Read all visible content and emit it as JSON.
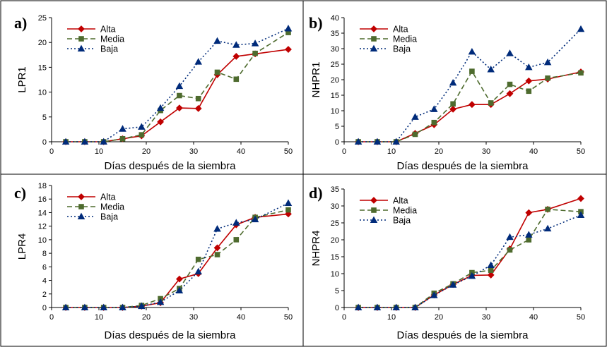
{
  "series_styles": {
    "Alta": {
      "color": "#c00000",
      "dash": "",
      "marker": "diamond"
    },
    "Media": {
      "color": "#4e6b2e",
      "dash": "7,4",
      "marker": "square"
    },
    "Baja": {
      "color": "#002b7a",
      "dash": "2,3",
      "marker": "triangle"
    }
  },
  "chart_data": [
    {
      "panel_label": "a)",
      "type": "line",
      "xlabel": "Días después de la siembra",
      "ylabel": "LPR1",
      "xlim": [
        0,
        50
      ],
      "xticks": [
        0,
        10,
        20,
        30,
        40,
        50
      ],
      "ylim": [
        0,
        25
      ],
      "yticks": [
        0,
        5,
        10,
        15,
        20,
        25
      ],
      "legend": "top-left",
      "x": [
        3,
        7,
        11,
        15,
        19,
        23,
        27,
        31,
        35,
        39,
        43,
        50
      ],
      "series": [
        {
          "name": "Alta",
          "values": [
            0,
            0,
            0,
            0.6,
            1.2,
            4.0,
            6.8,
            6.7,
            13.5,
            17.2,
            17.7,
            18.6
          ]
        },
        {
          "name": "Media",
          "values": [
            0,
            0,
            0,
            0.6,
            1.4,
            6.3,
            9.3,
            8.7,
            14.0,
            12.6,
            17.8,
            22.0
          ]
        },
        {
          "name": "Baja",
          "values": [
            0,
            0,
            0,
            2.6,
            3.0,
            6.8,
            11.2,
            16.1,
            20.3,
            19.5,
            19.8,
            22.8
          ]
        }
      ]
    },
    {
      "panel_label": "b)",
      "type": "line",
      "xlabel": "Días después de la siembra",
      "ylabel": "NHPR1",
      "xlim": [
        0,
        50
      ],
      "xticks": [
        0,
        10,
        20,
        30,
        40,
        50
      ],
      "ylim": [
        0,
        40
      ],
      "yticks": [
        0,
        5,
        10,
        15,
        20,
        25,
        30,
        35,
        40
      ],
      "legend": "top-left",
      "x": [
        3,
        7,
        11,
        15,
        19,
        23,
        27,
        31,
        35,
        39,
        43,
        50
      ],
      "series": [
        {
          "name": "Alta",
          "values": [
            0,
            0,
            0,
            2.7,
            5.5,
            10.5,
            12.0,
            12.0,
            15.5,
            19.6,
            20.2,
            22.5
          ]
        },
        {
          "name": "Media",
          "values": [
            0,
            0,
            0,
            2.4,
            6.2,
            12.2,
            22.7,
            12.5,
            18.5,
            16.3,
            20.5,
            22.2
          ]
        },
        {
          "name": "Baja",
          "values": [
            0,
            0,
            0,
            8.0,
            10.5,
            19.0,
            29.0,
            23.3,
            28.5,
            24.0,
            25.6,
            36.3
          ]
        }
      ]
    },
    {
      "panel_label": "c)",
      "type": "line",
      "xlabel": "Días después de la siembra",
      "ylabel": "LPR4",
      "xlim": [
        0,
        50
      ],
      "xticks": [
        0,
        10,
        20,
        30,
        40,
        50
      ],
      "ylim": [
        0,
        18
      ],
      "yticks": [
        0,
        2,
        4,
        6,
        8,
        10,
        12,
        14,
        16,
        18
      ],
      "legend": "top-left",
      "x": [
        3,
        7,
        11,
        15,
        19,
        23,
        27,
        31,
        35,
        39,
        43,
        50
      ],
      "series": [
        {
          "name": "Alta",
          "values": [
            0,
            0,
            0,
            0,
            0.2,
            0.7,
            4.2,
            5.0,
            8.8,
            12.2,
            13.3,
            13.8
          ]
        },
        {
          "name": "Media",
          "values": [
            0,
            0,
            0,
            0,
            0.3,
            1.3,
            2.8,
            7.1,
            7.8,
            10.0,
            13.3,
            14.4
          ]
        },
        {
          "name": "Baja",
          "values": [
            0,
            0,
            0,
            0,
            0.2,
            0.8,
            2.5,
            5.3,
            11.6,
            12.5,
            13.0,
            15.4
          ]
        }
      ]
    },
    {
      "panel_label": "d)",
      "type": "line",
      "xlabel": "Días después de la siembra",
      "ylabel": "NHPR4",
      "xlim": [
        0,
        50
      ],
      "xticks": [
        0,
        10,
        20,
        30,
        40,
        50
      ],
      "ylim": [
        0,
        35
      ],
      "yticks": [
        0,
        5,
        10,
        15,
        20,
        25,
        30,
        35
      ],
      "legend": "top-left",
      "x": [
        3,
        7,
        11,
        15,
        19,
        23,
        27,
        31,
        35,
        39,
        43,
        50
      ],
      "series": [
        {
          "name": "Alta",
          "values": [
            0,
            0,
            0,
            0,
            3.7,
            6.8,
            9.5,
            9.6,
            17.3,
            28.0,
            29.0,
            32.2
          ]
        },
        {
          "name": "Media",
          "values": [
            0,
            0,
            0,
            0,
            4.2,
            7.0,
            10.3,
            11.0,
            17.0,
            20.0,
            29.0,
            28.3
          ]
        },
        {
          "name": "Baja",
          "values": [
            0,
            0,
            0,
            0,
            3.6,
            6.7,
            9.3,
            12.5,
            20.8,
            21.5,
            23.3,
            27.3
          ]
        }
      ]
    }
  ]
}
